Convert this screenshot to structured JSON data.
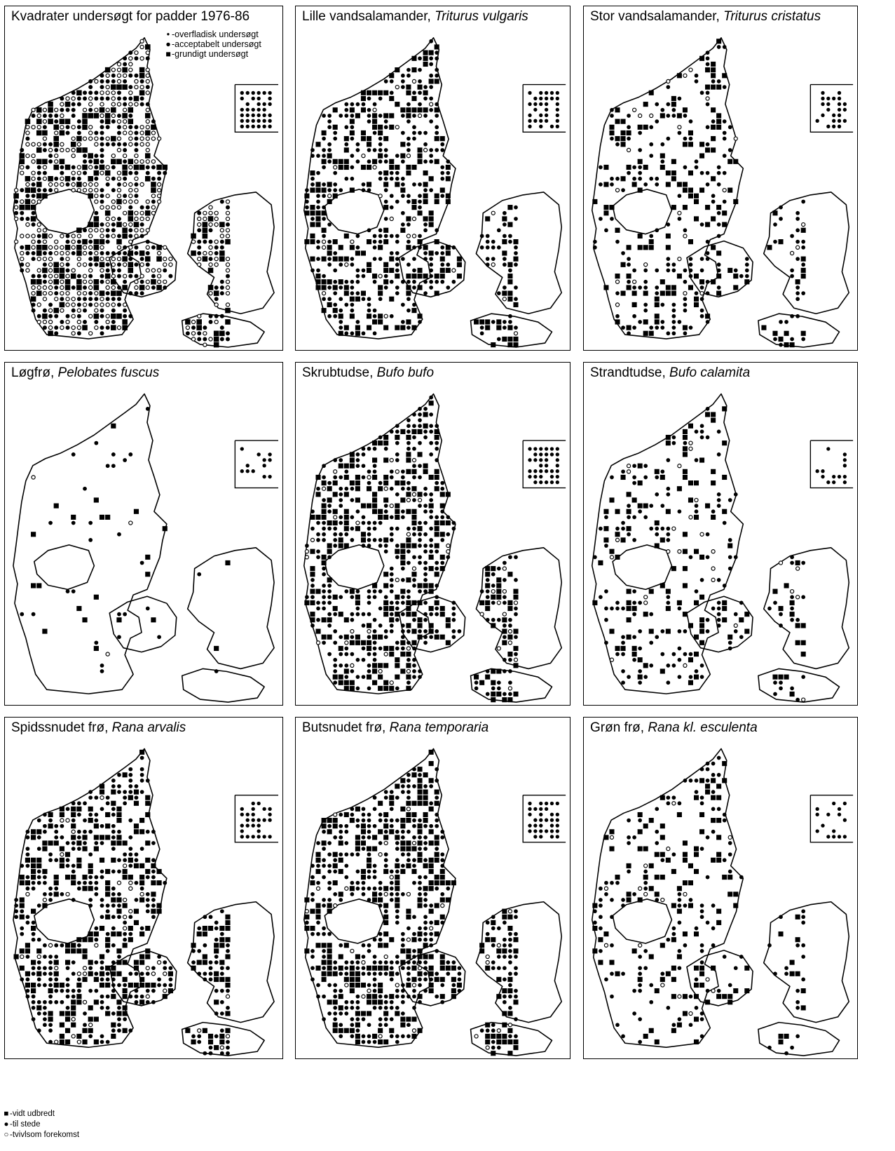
{
  "panels": [
    {
      "id": "survey",
      "title": "Kvadrater undersøgt for padder 1976-86",
      "species": "",
      "seed": 11,
      "density": 0.78,
      "kind": "survey"
    },
    {
      "id": "lille",
      "title": "Lille vandsalamander, ",
      "species": "Triturus vulgaris",
      "seed": 23,
      "density": 0.55,
      "kind": "species"
    },
    {
      "id": "stor",
      "title": "Stor vandsalamander, ",
      "species": "Triturus cristatus",
      "seed": 37,
      "density": 0.32,
      "kind": "species"
    },
    {
      "id": "loegfroe",
      "title": "Løgfrø, ",
      "species": "Pelobates fuscus",
      "seed": 41,
      "density": 0.06,
      "kind": "species"
    },
    {
      "id": "skrubtudse",
      "title": "Skrubtudse, ",
      "species": "Bufo bufo",
      "seed": 53,
      "density": 0.62,
      "kind": "species"
    },
    {
      "id": "strandtudse",
      "title": "Strandtudse, ",
      "species": "Bufo calamita",
      "seed": 67,
      "density": 0.22,
      "kind": "species"
    },
    {
      "id": "spidssnudet",
      "title": "Spidssnudet frø, ",
      "species": "Rana arvalis",
      "seed": 71,
      "density": 0.6,
      "kind": "species"
    },
    {
      "id": "butsnudet",
      "title": "Butsnudet frø, ",
      "species": "Rana temporaria",
      "seed": 83,
      "density": 0.63,
      "kind": "species"
    },
    {
      "id": "groen",
      "title": "Grøn frø, ",
      "species": "Rana kl. esculenta",
      "seed": 97,
      "density": 0.25,
      "kind": "species"
    }
  ],
  "survey_legend": {
    "superficial": "-overfladisk undersøgt",
    "acceptable": "-acceptabelt undersøgt",
    "thorough": "-grundigt undersøgt"
  },
  "page_legend": {
    "widespread": "-vidt udbredt",
    "present": "-til stede",
    "doubtful": "-tvivlsom forekomst"
  },
  "colors": {
    "ink": "#000000",
    "paper": "#ffffff"
  }
}
